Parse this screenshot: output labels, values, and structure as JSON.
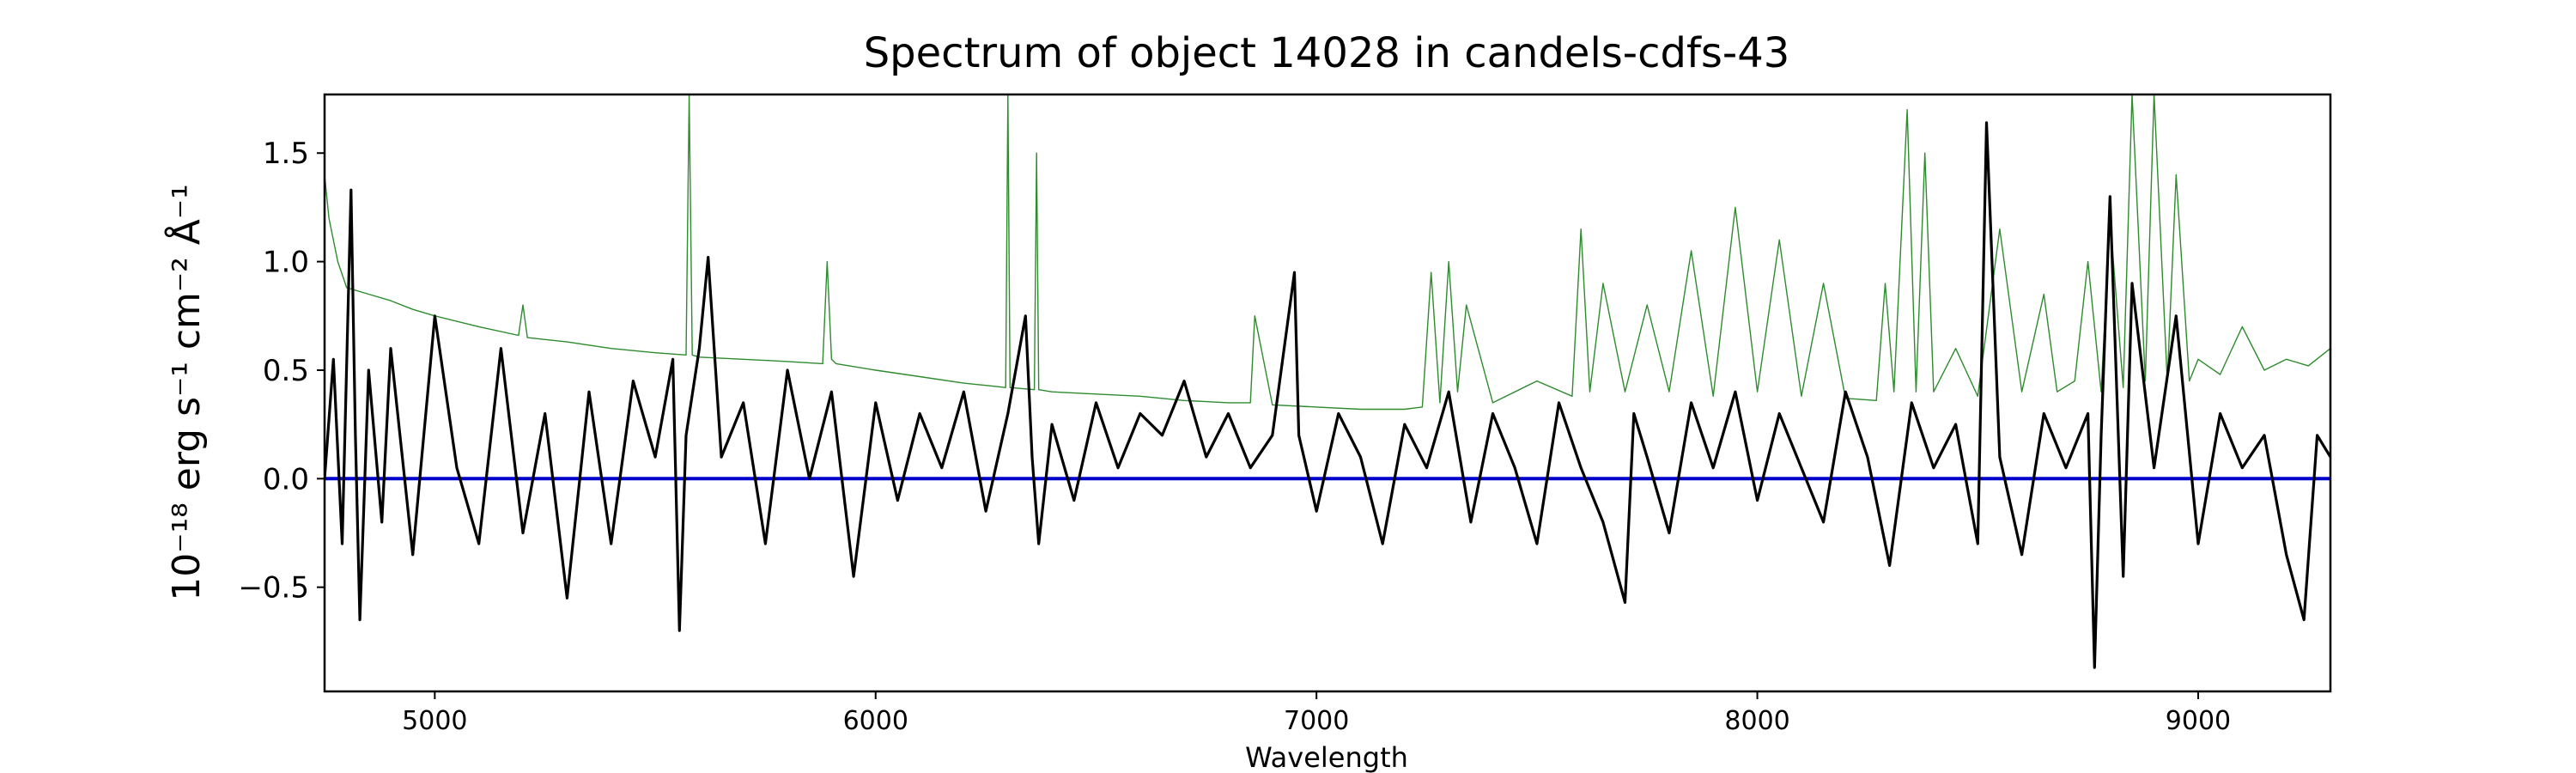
{
  "chart_data": {
    "type": "line",
    "title": "Spectrum of object 14028 in candels-cdfs-43",
    "xlabel": "Wavelength",
    "ylabel": "10⁻¹⁸ erg s⁻¹ cm⁻² Å⁻¹",
    "xlim": [
      4750,
      9300
    ],
    "ylim": [
      -0.98,
      1.77
    ],
    "x_ticks": [
      5000,
      6000,
      7000,
      8000,
      9000
    ],
    "y_ticks": [
      -0.5,
      0.0,
      0.5,
      1.0,
      1.5
    ],
    "x_tick_labels": [
      "5000",
      "6000",
      "7000",
      "8000",
      "9000"
    ],
    "y_tick_labels": [
      "−0.5",
      "0.0",
      "0.5",
      "1.0",
      "1.5"
    ],
    "grid": false,
    "series": [
      {
        "role": "flux",
        "color": "#000000",
        "x": [
          4750,
          4770,
          4790,
          4810,
          4820,
          4830,
          4850,
          4880,
          4900,
          4950,
          5000,
          5050,
          5100,
          5150,
          5200,
          5250,
          5300,
          5350,
          5400,
          5450,
          5500,
          5540,
          5555,
          5570,
          5600,
          5620,
          5650,
          5700,
          5750,
          5800,
          5850,
          5900,
          5950,
          6000,
          6050,
          6100,
          6150,
          6200,
          6250,
          6300,
          6340,
          6355,
          6370,
          6400,
          6450,
          6500,
          6550,
          6600,
          6650,
          6700,
          6750,
          6800,
          6850,
          6900,
          6950,
          6960,
          7000,
          7050,
          7100,
          7150,
          7200,
          7250,
          7300,
          7350,
          7400,
          7450,
          7500,
          7550,
          7600,
          7650,
          7700,
          7720,
          7750,
          7800,
          7850,
          7900,
          7950,
          8000,
          8050,
          8100,
          8150,
          8200,
          8250,
          8300,
          8350,
          8400,
          8450,
          8500,
          8520,
          8550,
          8600,
          8650,
          8700,
          8750,
          8765,
          8780,
          8800,
          8830,
          8850,
          8900,
          8950,
          9000,
          9050,
          9100,
          9150,
          9200,
          9240,
          9270,
          9300
        ],
        "y": [
          0.0,
          0.55,
          -0.3,
          1.33,
          0.2,
          -0.65,
          0.5,
          -0.2,
          0.6,
          -0.35,
          0.75,
          0.05,
          -0.3,
          0.6,
          -0.25,
          0.3,
          -0.55,
          0.4,
          -0.3,
          0.45,
          0.1,
          0.55,
          -0.7,
          0.2,
          0.6,
          1.02,
          0.1,
          0.35,
          -0.3,
          0.5,
          0.0,
          0.4,
          -0.45,
          0.35,
          -0.1,
          0.3,
          0.05,
          0.4,
          -0.15,
          0.3,
          0.75,
          0.1,
          -0.3,
          0.25,
          -0.1,
          0.35,
          0.05,
          0.3,
          0.2,
          0.45,
          0.1,
          0.3,
          0.05,
          0.2,
          0.95,
          0.2,
          -0.15,
          0.3,
          0.1,
          -0.3,
          0.25,
          0.05,
          0.4,
          -0.2,
          0.3,
          0.05,
          -0.3,
          0.35,
          0.05,
          -0.2,
          -0.57,
          0.3,
          0.1,
          -0.25,
          0.35,
          0.05,
          0.4,
          -0.1,
          0.3,
          0.05,
          -0.2,
          0.4,
          0.1,
          -0.4,
          0.35,
          0.05,
          0.25,
          -0.3,
          1.64,
          0.1,
          -0.35,
          0.3,
          0.05,
          0.3,
          -0.87,
          0.2,
          1.3,
          -0.45,
          0.9,
          0.05,
          0.75,
          -0.3,
          0.3,
          0.05,
          0.2,
          -0.35,
          -0.65,
          0.2,
          0.1
        ]
      },
      {
        "role": "error",
        "color": "#2e8b2e",
        "x": [
          4750,
          4760,
          4780,
          4800,
          4850,
          4900,
          4950,
          5000,
          5100,
          5190,
          5200,
          5210,
          5300,
          5400,
          5500,
          5570,
          5577,
          5584,
          5600,
          5700,
          5800,
          5880,
          5890,
          5900,
          5910,
          6000,
          6100,
          6200,
          6250,
          6295,
          6300,
          6305,
          6360,
          6365,
          6370,
          6400,
          6500,
          6600,
          6700,
          6800,
          6850,
          6860,
          6900,
          7000,
          7100,
          7200,
          7240,
          7260,
          7280,
          7300,
          7320,
          7340,
          7400,
          7500,
          7580,
          7600,
          7620,
          7650,
          7700,
          7750,
          7800,
          7850,
          7900,
          7950,
          8000,
          8050,
          8100,
          8150,
          8200,
          8270,
          8290,
          8310,
          8340,
          8360,
          8380,
          8400,
          8450,
          8500,
          8550,
          8600,
          8650,
          8680,
          8720,
          8750,
          8780,
          8800,
          8830,
          8850,
          8880,
          8900,
          8930,
          8950,
          8980,
          9000,
          9050,
          9100,
          9150,
          9200,
          9250,
          9300
        ],
        "y": [
          1.4,
          1.2,
          1.0,
          0.88,
          0.85,
          0.82,
          0.78,
          0.75,
          0.7,
          0.66,
          0.8,
          0.65,
          0.63,
          0.6,
          0.58,
          0.57,
          1.77,
          0.57,
          0.56,
          0.55,
          0.54,
          0.53,
          1.0,
          0.55,
          0.53,
          0.5,
          0.47,
          0.44,
          0.43,
          0.42,
          1.77,
          0.42,
          0.41,
          1.5,
          0.41,
          0.4,
          0.39,
          0.38,
          0.36,
          0.35,
          0.35,
          0.75,
          0.34,
          0.33,
          0.32,
          0.32,
          0.33,
          0.95,
          0.35,
          1.0,
          0.4,
          0.8,
          0.35,
          0.45,
          0.38,
          1.15,
          0.4,
          0.9,
          0.4,
          0.8,
          0.4,
          1.05,
          0.38,
          1.25,
          0.4,
          1.1,
          0.38,
          0.9,
          0.37,
          0.36,
          0.9,
          0.4,
          1.7,
          0.4,
          1.5,
          0.4,
          0.6,
          0.38,
          1.15,
          0.4,
          0.85,
          0.4,
          0.45,
          1.0,
          0.4,
          1.2,
          0.42,
          1.77,
          0.45,
          1.77,
          0.45,
          1.4,
          0.45,
          0.55,
          0.48,
          0.7,
          0.5,
          0.55,
          0.52,
          0.6
        ]
      },
      {
        "role": "zero",
        "color": "#0000cc",
        "x": [
          4750,
          9300
        ],
        "y": [
          0.0,
          0.0
        ]
      }
    ]
  }
}
